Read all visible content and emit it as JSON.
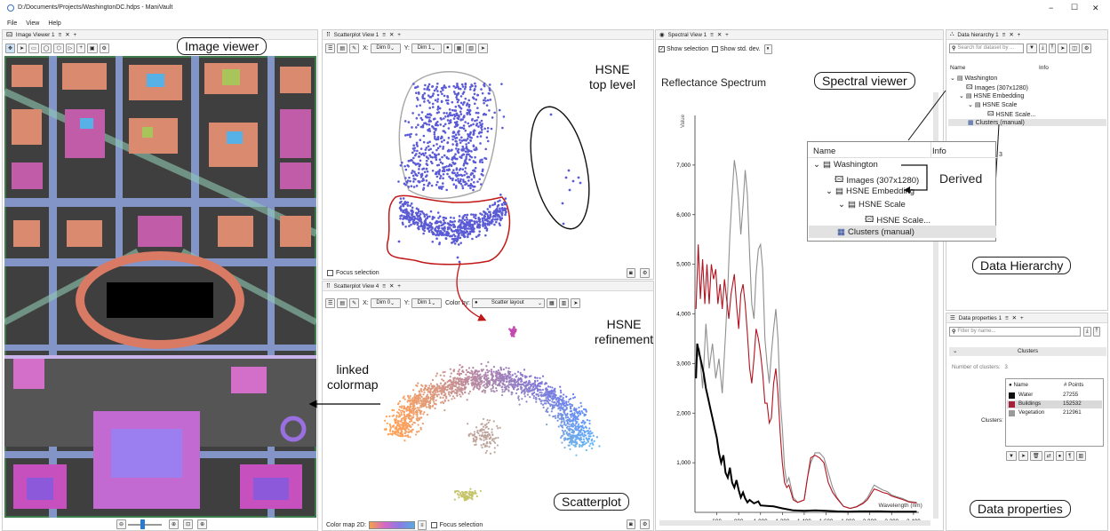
{
  "window": {
    "title": "D:/Documents/Projects/WashingtonDC.hdps - ManiVault",
    "minimize": "−",
    "maximize": "☐",
    "close": "✕"
  },
  "menu": [
    "File",
    "View",
    "Help"
  ],
  "image_viewer": {
    "tab": "Image Viewer 1",
    "callout": "Image viewer",
    "zoom": [
      "⊖",
      "⊕",
      "⊡",
      "⊕"
    ]
  },
  "scatter1": {
    "tab": "Scatterplot View 1",
    "x_label": "X:",
    "x_value": "Dim 0",
    "y_label": "Y:",
    "y_value": "Dim 1",
    "focus": "Focus selection",
    "note": [
      "HSNE",
      "top level"
    ]
  },
  "scatter4": {
    "tab": "Scatterplot View 4",
    "x_label": "X:",
    "x_value": "Dim 0",
    "y_label": "Y:",
    "y_value": "Dim 1",
    "color_by_label": "Color by:",
    "color_by_value": "Scatter layout",
    "colormap_label": "Color map 2D:",
    "focus": "Focus selection",
    "note": [
      "HSNE",
      "refinement"
    ],
    "callout": "Scatterplot"
  },
  "linked": [
    "linked",
    "colormap"
  ],
  "spectral": {
    "tab": "Spectral View 1",
    "show_selection": "Show selection",
    "show_std": "Show std. dev.",
    "title": "Reflectance Spectrum",
    "callout": "Spectral viewer",
    "ylabel": "Value",
    "xlabel": "Wavelength (nm)",
    "yticks": [
      "7,000",
      "6,000",
      "5,000",
      "4,000",
      "3,000",
      "2,000",
      "1,000"
    ],
    "xticks": [
      "600",
      "800",
      "1,000",
      "1,200",
      "1,400",
      "1,600",
      "1,800",
      "2,000",
      "2,200",
      "2,400"
    ]
  },
  "hierarchy": {
    "tab": "Data hierarchy 1",
    "search_placeholder": "Search for dataset by ...",
    "col_name": "Name",
    "col_info": "Info",
    "items": [
      "Washington",
      "Images (307x1280)",
      "HSNE Embedding",
      "HSNE Scale",
      "HSNE Scale...",
      "Clusters (manual)"
    ],
    "callout": "Data Hierarchy",
    "derived": "Derived",
    "zoom_items": [
      "Washington",
      "Images (307x1280)",
      "HSNE Embedding",
      "HSNE Scale",
      "HSNE Scale...",
      "Clusters (manual)"
    ],
    "zoom_col_name": "Name",
    "zoom_col_info": "Info",
    "peek": "3"
  },
  "properties": {
    "tab": "Data properties 1",
    "filter_placeholder": "Filter by name...",
    "section": "Clusters",
    "num_clusters_label": "Number of clusters:",
    "num_clusters": "3",
    "clusters_label": "Clusters:",
    "table_head": [
      "Name",
      "# Points"
    ],
    "rows": [
      {
        "name": "Water",
        "points": "27255",
        "color": "#111111"
      },
      {
        "name": "Buildings",
        "points": "152532",
        "color": "#a3213a"
      },
      {
        "name": "Vegetation",
        "points": "212961",
        "color": "#9a9a9a"
      }
    ],
    "callout": "Data properties"
  }
}
